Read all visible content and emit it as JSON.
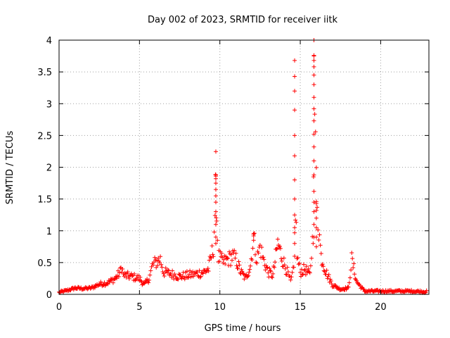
{
  "chart_data": {
    "type": "scatter",
    "title": "Day 002 of 2023, SRMTID for receiver iitk",
    "xlabel": "GPS time / hours",
    "ylabel": "SRMTID / TECUs",
    "xlim": [
      0,
      23
    ],
    "ylim": [
      0,
      4
    ],
    "x_ticks": [
      0,
      5,
      10,
      15,
      20
    ],
    "y_ticks": [
      0,
      0.5,
      1,
      1.5,
      2,
      2.5,
      3,
      3.5,
      4
    ],
    "x_tick_labels": [
      "0",
      "5",
      "10",
      "15",
      "20"
    ],
    "y_tick_labels": [
      "0",
      "0.5",
      "1",
      "1.5",
      "2",
      "2.5",
      "3",
      "3.5",
      "4"
    ],
    "grid": true,
    "marker": "+",
    "marker_color": "#ff0000",
    "series": [
      {
        "name": "SRMTID iitk",
        "profile": [
          [
            0.0,
            0.03
          ],
          [
            0.5,
            0.06
          ],
          [
            1.0,
            0.1
          ],
          [
            1.5,
            0.09
          ],
          [
            2.0,
            0.1
          ],
          [
            2.5,
            0.16
          ],
          [
            3.0,
            0.18
          ],
          [
            3.5,
            0.25
          ],
          [
            3.8,
            0.35
          ],
          [
            3.9,
            0.45
          ],
          [
            4.0,
            0.3
          ],
          [
            4.5,
            0.28
          ],
          [
            5.0,
            0.25
          ],
          [
            5.3,
            0.15
          ],
          [
            5.6,
            0.25
          ],
          [
            5.8,
            0.45
          ],
          [
            6.0,
            0.5
          ],
          [
            6.3,
            0.55
          ],
          [
            6.5,
            0.35
          ],
          [
            7.0,
            0.32
          ],
          [
            7.5,
            0.28
          ],
          [
            8.0,
            0.3
          ],
          [
            8.5,
            0.32
          ],
          [
            9.0,
            0.35
          ],
          [
            9.3,
            0.4
          ],
          [
            9.6,
            0.75
          ],
          [
            9.7,
            1.3
          ],
          [
            9.75,
            1.85
          ],
          [
            9.8,
            1.2
          ],
          [
            9.9,
            0.6
          ],
          [
            10.2,
            0.5
          ],
          [
            10.5,
            0.55
          ],
          [
            10.8,
            0.6
          ],
          [
            11.0,
            0.55
          ],
          [
            11.3,
            0.35
          ],
          [
            11.6,
            0.25
          ],
          [
            11.9,
            0.45
          ],
          [
            12.1,
            0.9
          ],
          [
            12.3,
            0.55
          ],
          [
            12.5,
            0.75
          ],
          [
            12.7,
            0.55
          ],
          [
            13.0,
            0.35
          ],
          [
            13.3,
            0.3
          ],
          [
            13.6,
            0.8
          ],
          [
            13.9,
            0.55
          ],
          [
            14.2,
            0.35
          ],
          [
            14.4,
            0.2
          ],
          [
            14.6,
            0.4
          ],
          [
            14.7,
            1.4
          ],
          [
            14.8,
            0.6
          ],
          [
            15.0,
            0.35
          ],
          [
            15.3,
            0.4
          ],
          [
            15.6,
            0.3
          ],
          [
            15.8,
            1.0
          ],
          [
            15.85,
            3.7
          ],
          [
            15.95,
            2.2
          ],
          [
            16.1,
            1.2
          ],
          [
            16.3,
            0.6
          ],
          [
            16.6,
            0.35
          ],
          [
            17.0,
            0.15
          ],
          [
            17.5,
            0.08
          ],
          [
            18.0,
            0.1
          ],
          [
            18.2,
            0.55
          ],
          [
            18.5,
            0.2
          ],
          [
            19.0,
            0.05
          ],
          [
            20.0,
            0.05
          ],
          [
            21.0,
            0.05
          ],
          [
            22.0,
            0.05
          ],
          [
            22.9,
            0.04
          ]
        ],
        "spikes": [
          {
            "x": 9.75,
            "values": [
              0.8,
              0.9,
              1.1,
              1.3,
              1.45,
              1.55,
              1.65,
              1.75,
              1.82,
              1.86,
              1.88
            ]
          },
          {
            "x": 14.65,
            "values": [
              0.6,
              0.8,
              1.05,
              1.25,
              1.5,
              1.8,
              2.18,
              2.5,
              2.9,
              3.2,
              3.43,
              3.68
            ]
          },
          {
            "x": 15.85,
            "values": [
              0.9,
              1.1,
              1.3,
              1.45,
              1.62,
              1.88,
              2.1,
              2.32,
              2.52,
              2.73,
              2.92,
              3.1,
              3.3,
              3.45,
              3.58,
              3.68,
              3.75,
              3.76
            ]
          },
          {
            "x": 16.0,
            "values": [
              0.75,
              0.9,
              1.05,
              1.2,
              1.32,
              1.43,
              1.46
            ]
          },
          {
            "x": 12.1,
            "values": [
              0.85,
              0.92,
              0.95
            ]
          }
        ]
      }
    ]
  }
}
